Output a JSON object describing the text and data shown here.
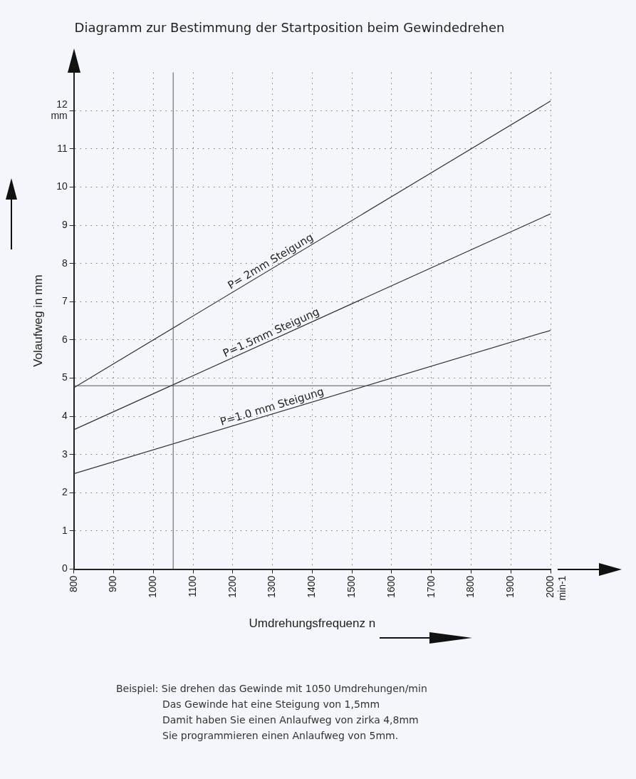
{
  "chart_data": {
    "type": "line",
    "title": "Diagramm zur Bestimmung der Startposition beim Gewindedrehen",
    "xlabel": "Umdrehungsfrequenz n",
    "ylabel": "Volaufweg in mm",
    "x": [
      800,
      2000
    ],
    "series": [
      {
        "name": "P= 2mm Steigung",
        "color": "#333333",
        "values": [
          4.75,
          12.25
        ]
      },
      {
        "name": "P=1.5mm Steigung",
        "color": "#333333",
        "values": [
          3.65,
          9.3
        ]
      },
      {
        "name": "P=1.0 mm Steigung",
        "color": "#333333",
        "values": [
          2.5,
          6.25
        ]
      }
    ],
    "xlim": [
      800,
      2000
    ],
    "xticks": [
      800,
      900,
      1000,
      1100,
      1200,
      1300,
      1400,
      1500,
      1600,
      1700,
      1800,
      1900,
      {
        "value": 2000,
        "label": "2000 min-1"
      }
    ],
    "ylim": [
      0,
      13
    ],
    "yticks": [
      0,
      1,
      2,
      3,
      4,
      5,
      6,
      7,
      8,
      9,
      10,
      11,
      {
        "value": 12,
        "label": "12 mm"
      }
    ],
    "grid": true,
    "marker": "none",
    "line_style": "solid",
    "ref_lines": [
      {
        "axis": "y",
        "value": 4.8,
        "color": "#555555"
      },
      {
        "axis": "x",
        "value": 1050,
        "color": "#555555"
      }
    ],
    "annotations": [
      "Beispiel: Sie drehen das Gewinde mit 1050 Umdrehungen/min",
      "Das Gewinde hat eine Steigung von 1,5mm",
      "Damit haben Sie einen Anlaufweg von zirka 4,8mm",
      "Sie programmieren einen Anlaufweg von 5mm."
    ]
  }
}
